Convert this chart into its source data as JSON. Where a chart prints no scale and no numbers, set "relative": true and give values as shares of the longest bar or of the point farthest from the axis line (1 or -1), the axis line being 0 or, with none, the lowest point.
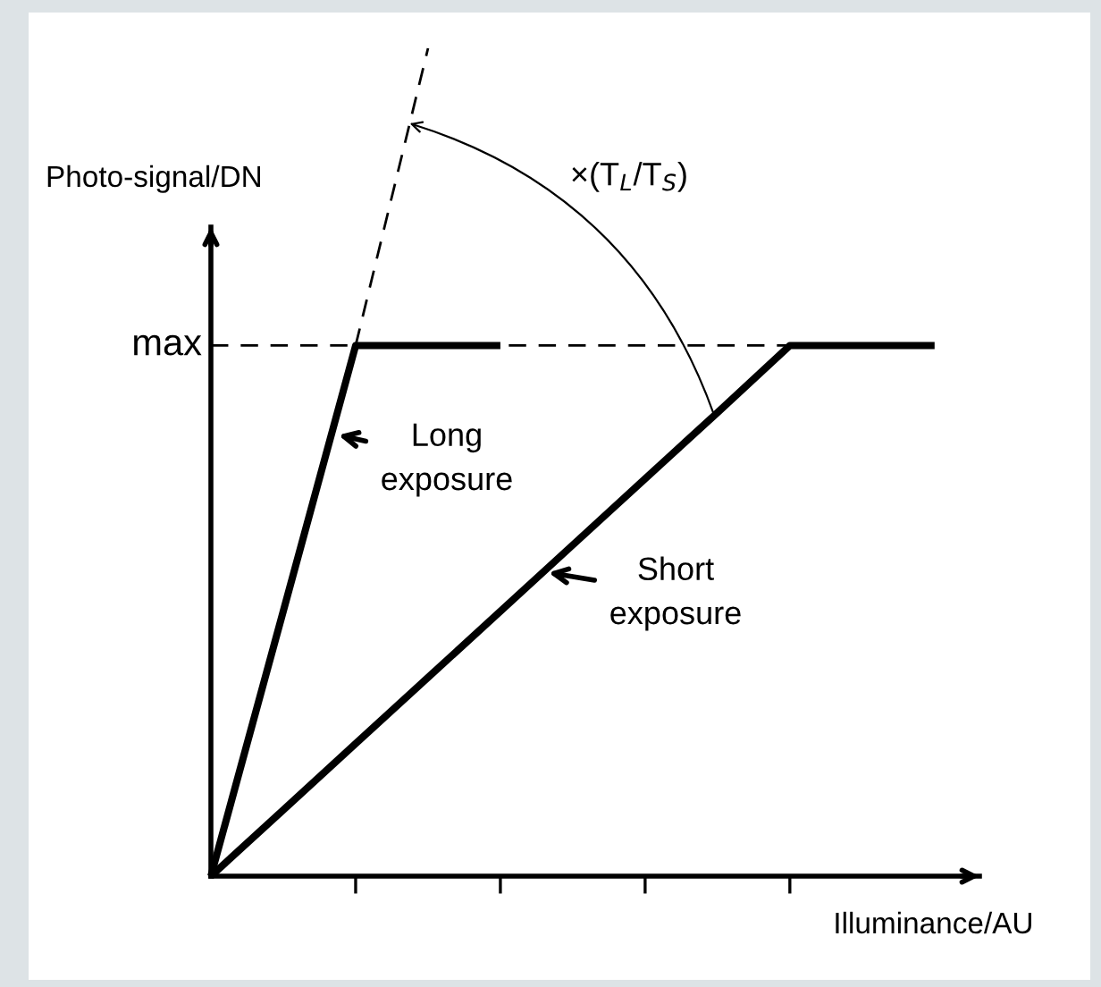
{
  "chart_data": {
    "type": "line",
    "relative": true,
    "xlabel": "Illuminance/AU",
    "ylabel": "Photo-signal/DN",
    "categories": [
      null,
      null,
      null,
      null,
      null,
      null,
      null,
      null,
      null,
      null,
      null
    ],
    "series": [
      {
        "name": "max",
        "color": "#000000",
        "values": [
          0.641,
          0.641,
          0.641,
          0.641,
          0.641,
          0.641,
          0.641,
          0.641,
          0.641,
          null,
          null
        ],
        "line_style": "dashed"
      },
      {
        "color": "#000000",
        "values": [
          0,
          0.32,
          0.641,
          0.641,
          0.641,
          null,
          null,
          null,
          null,
          null,
          null
        ]
      },
      {
        "color": "#000000",
        "values": [
          0,
          0.08,
          0.16,
          0.24,
          0.32,
          0.4,
          0.48,
          0.56,
          0.641,
          0.641,
          0.641
        ]
      },
      {
        "color": "#000000",
        "values": [
          null,
          null,
          0.641,
          1,
          null,
          null,
          null,
          null,
          null,
          null,
          null
        ],
        "line_style": "dashed"
      }
    ],
    "annotations": [
      "Long\nexposure",
      "Short\nexposure",
      "×(T$_{L}$/T$_{S}$)"
    ]
  }
}
